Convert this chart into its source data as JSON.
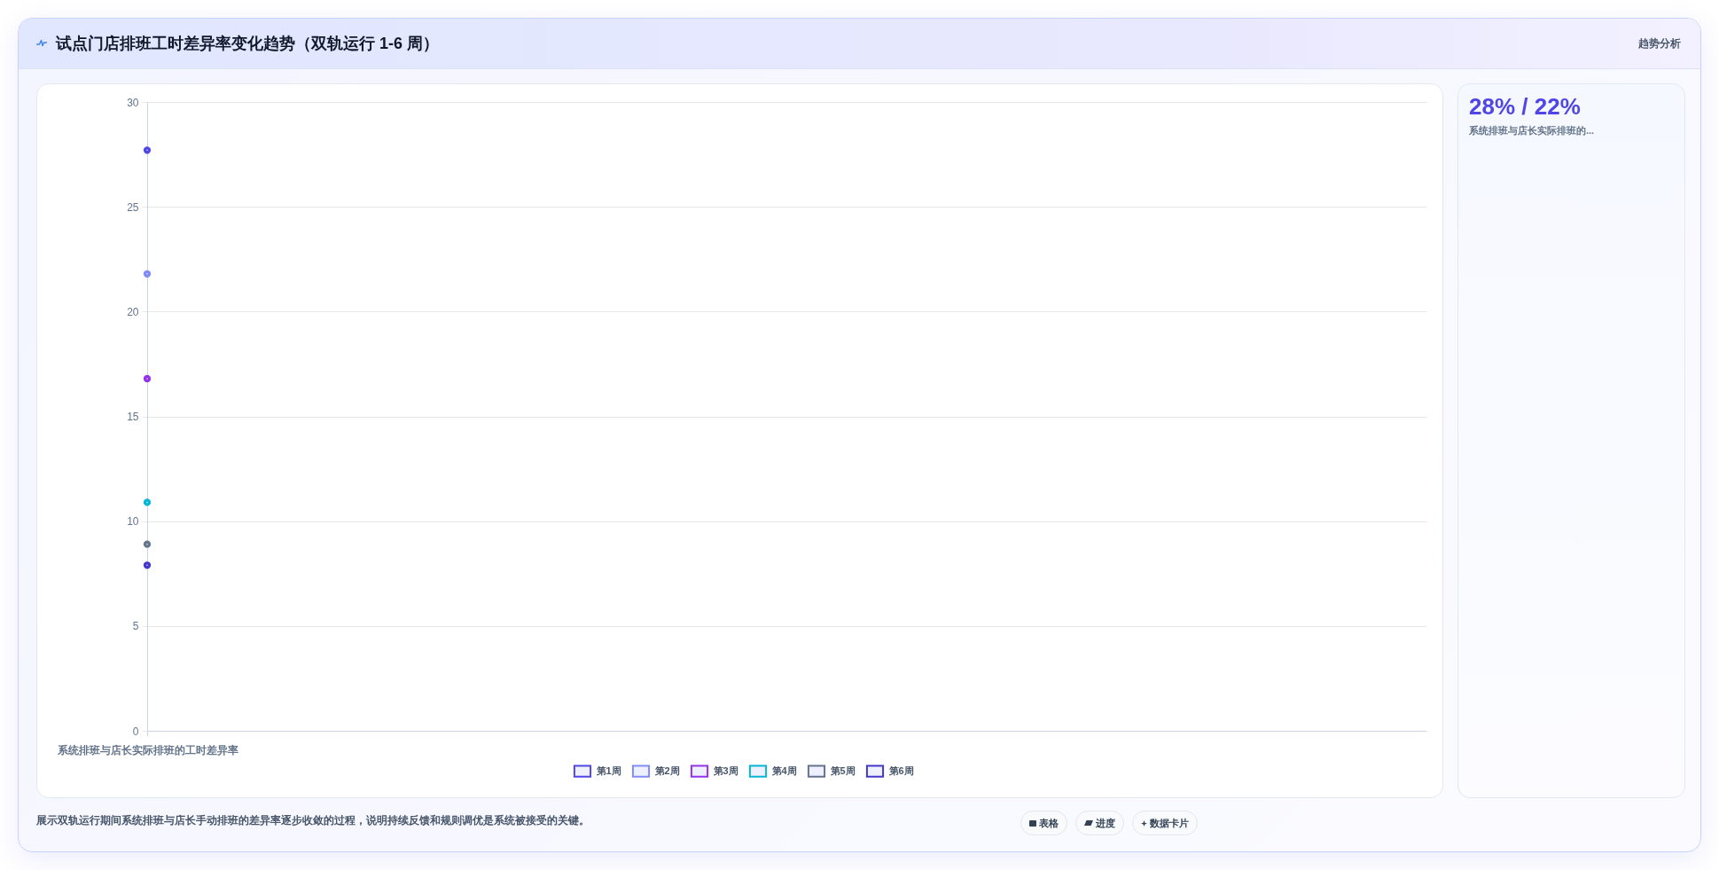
{
  "chart_data": [
    {
      "type": "scatter",
      "title": "试点门店排班工时差异率变化趋势（双轨运行 1-6 周）",
      "categories": [
        "系统排班与店长实际排班的工时差异率"
      ],
      "series": [
        {
          "name": "第1周",
          "color": "#4f46e5",
          "values": [
            27.7
          ]
        },
        {
          "name": "第2周",
          "color": "#818cf8",
          "values": [
            21.8
          ]
        },
        {
          "name": "第3周",
          "color": "#9333ea",
          "values": [
            16.8
          ]
        },
        {
          "name": "第4周",
          "color": "#06b6d4",
          "values": [
            10.9
          ]
        },
        {
          "name": "第5周",
          "color": "#64748b",
          "values": [
            8.9
          ]
        },
        {
          "name": "第6周",
          "color": "#4338ca",
          "values": [
            7.9
          ]
        }
      ],
      "ylim": [
        0,
        30
      ],
      "yticks": [
        0,
        5,
        10,
        15,
        20,
        25,
        30
      ],
      "grid": "y",
      "legend": "bottom",
      "marker": "circle",
      "annotations": [
        "趋势分析",
        "展示双轨运行期间系统排班与店长手动排班的差异率逐步收敛的过程，说明持续反馈和规则调优是系统被接受的关键。",
        "表格",
        "进度",
        "数据卡片"
      ]
    },
    {
      "type": "other",
      "title": "28% / 22%",
      "subtitle": "系统排班与店长实际排班的..."
    }
  ]
}
